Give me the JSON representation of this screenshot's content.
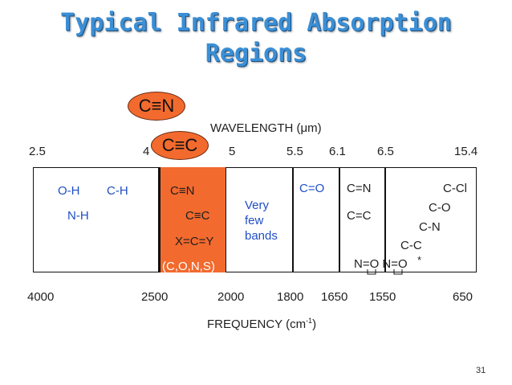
{
  "slide": {
    "title_line1": "Typical Infrared Absorption",
    "title_line2": "Regions",
    "page_number": "31"
  },
  "callouts": {
    "triple_cn": "C≡N",
    "triple_cc": "C≡C"
  },
  "wavelength": {
    "label": "WAVELENGTH (μm)",
    "ticks": [
      "2.5",
      "4",
      "5",
      "5.5",
      "6.1",
      "6.5",
      "15.4"
    ]
  },
  "frequency": {
    "label": "FREQUENCY (cm",
    "label_sup": "-1",
    "label_end": ")",
    "ticks": [
      "4000",
      "2500",
      "2000",
      "1800",
      "1650",
      "1550",
      "650"
    ]
  },
  "regions": {
    "oh": "O-H",
    "ch": "C-H",
    "nh": "N-H",
    "cn_triple": "C≡N",
    "cc_triple": "C≡C",
    "xcy": "X=C=Y",
    "cons": "(C,O,N,S)",
    "few1": "Very",
    "few2": "few",
    "few3": "bands",
    "co_double": "C=O",
    "cn_double": "C=N",
    "cc_double": "C=C",
    "no": "N=O N=O",
    "star": "*",
    "ccl": "C-Cl",
    "co_single": "C-O",
    "cn_single": "C-N",
    "cc_single": "C-C"
  }
}
